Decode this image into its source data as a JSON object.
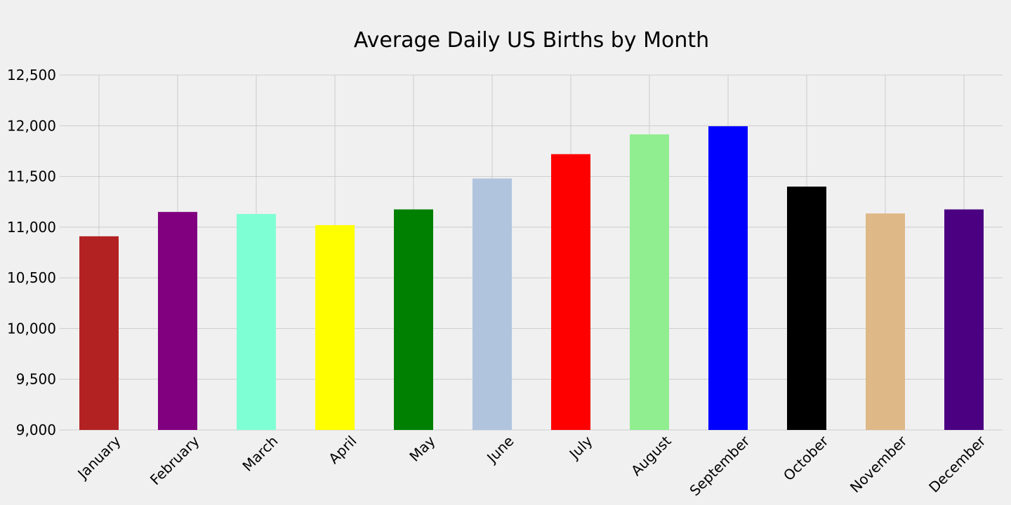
{
  "chart_data": {
    "type": "bar",
    "title": "Average Daily US Births by Month",
    "xlabel": "",
    "ylabel": "",
    "ylim": [
      9000,
      12500
    ],
    "yticks": [
      "9,000",
      "9,500",
      "10,000",
      "10,500",
      "11,000",
      "11,500",
      "12,000",
      "12,500"
    ],
    "ytick_values": [
      9000,
      9500,
      10000,
      10500,
      11000,
      11500,
      12000,
      12500
    ],
    "grid": true,
    "legend": "none",
    "categories": [
      "January",
      "February",
      "March",
      "April",
      "May",
      "June",
      "July",
      "August",
      "September",
      "October",
      "November",
      "December"
    ],
    "values": [
      10910,
      11150,
      11130,
      11020,
      11175,
      11480,
      11720,
      11915,
      11995,
      11400,
      11135,
      11175
    ],
    "colors": [
      "#b22222",
      "#800080",
      "#7fffd4",
      "#ffff00",
      "#008000",
      "#b0c4de",
      "#ff0000",
      "#90ee90",
      "#0000ff",
      "#000000",
      "#deb887",
      "#4b0082"
    ]
  },
  "style": {
    "background": "#f0f0f0",
    "grid_color": "#cbcbcb",
    "text_color": "#000000"
  }
}
